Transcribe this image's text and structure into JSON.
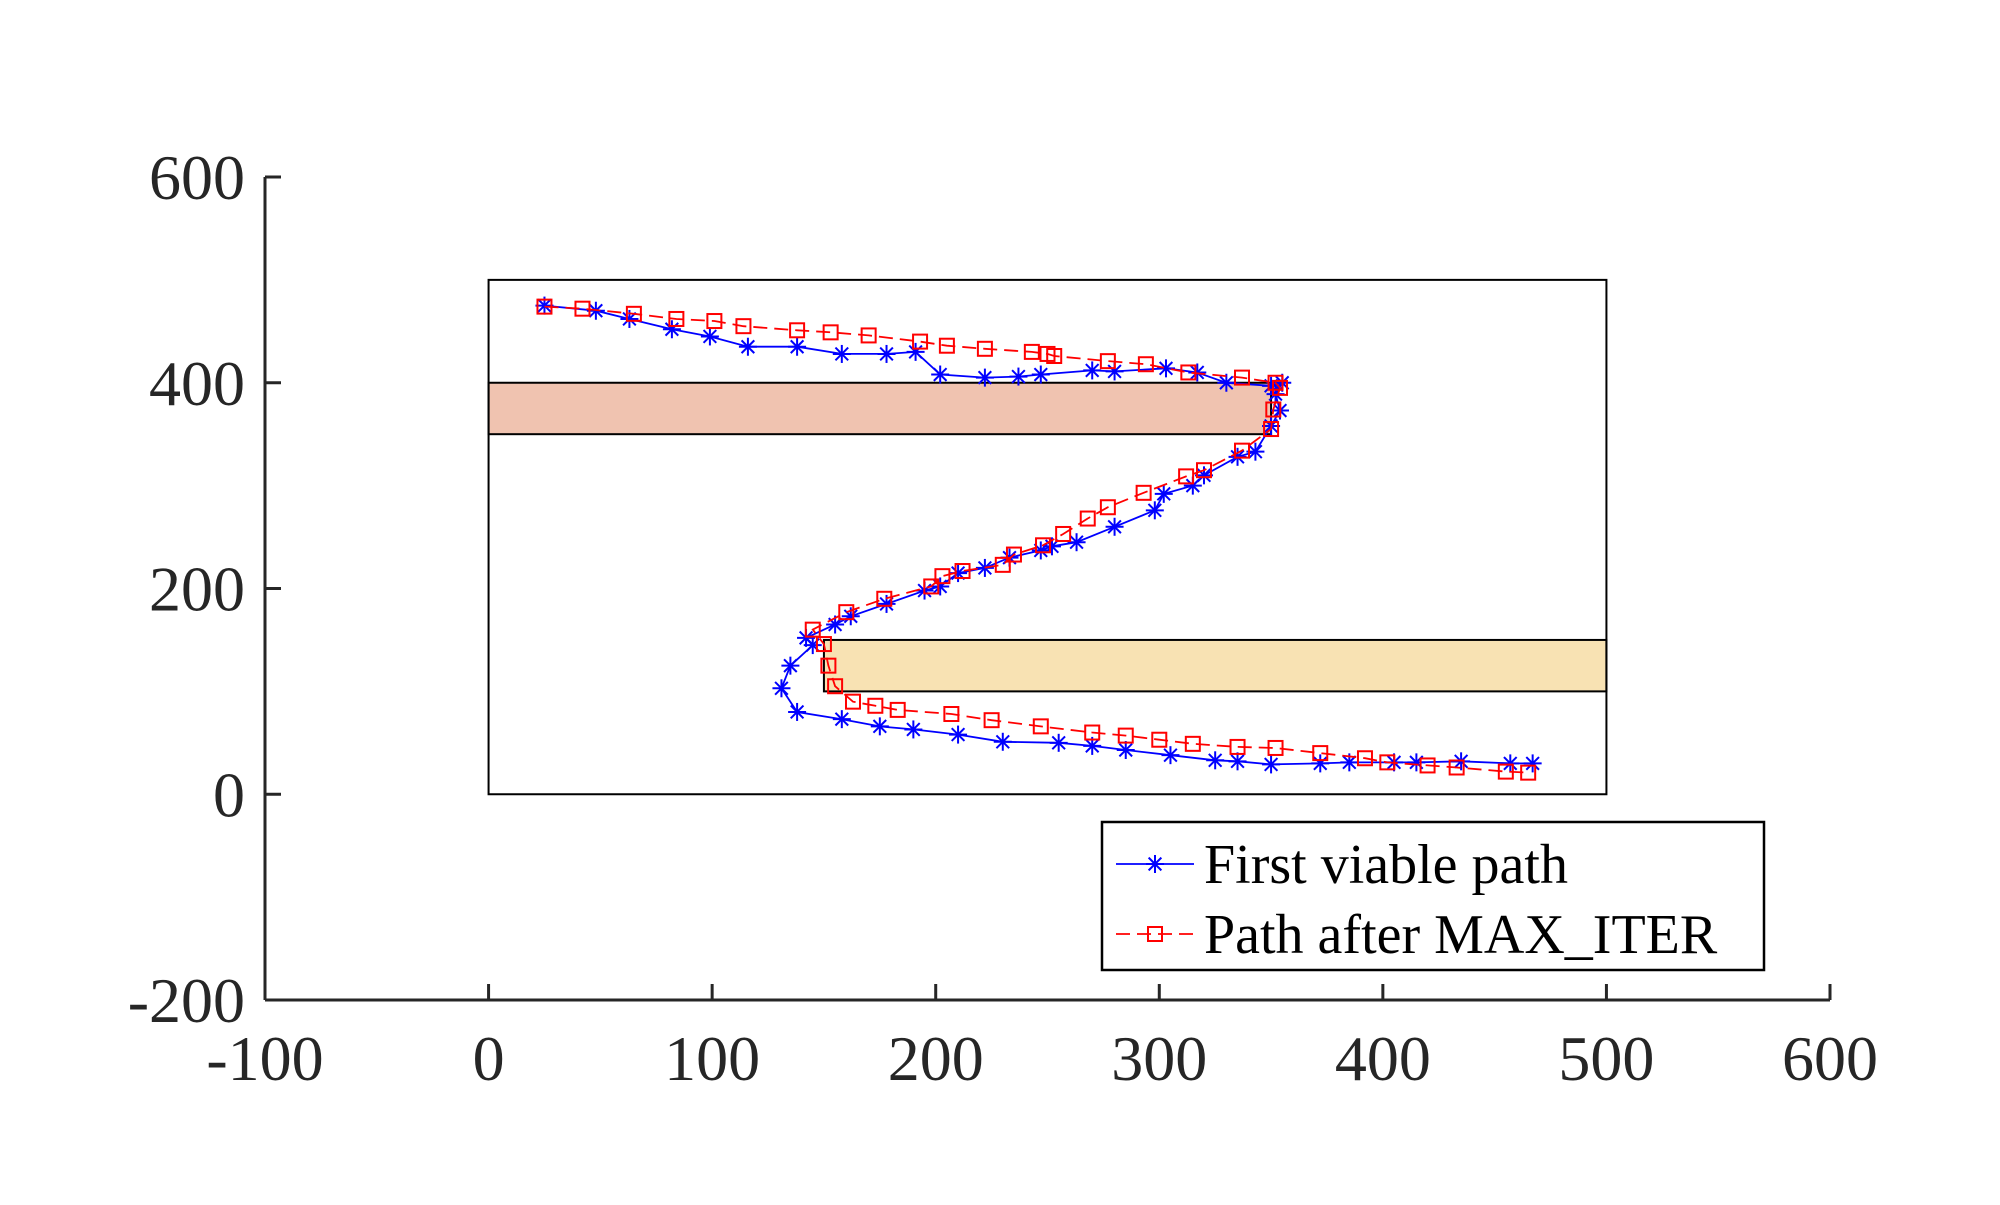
{
  "chart_data": {
    "type": "line",
    "title": "",
    "xlabel": "",
    "ylabel": "",
    "xlim": [
      -100,
      600
    ],
    "ylim": [
      -200,
      600
    ],
    "x_ticks": [
      "-100",
      "0",
      "100",
      "200",
      "300",
      "400",
      "500",
      "600"
    ],
    "y_ticks": [
      "-200",
      "0",
      "200",
      "400",
      "600"
    ],
    "grid": false,
    "legend_position": "bottom-right",
    "boundary": {
      "x": [
        0,
        500
      ],
      "y": [
        0,
        500
      ]
    },
    "obstacles": [
      {
        "x": [
          0,
          350
        ],
        "y": [
          350,
          400
        ],
        "color": "#f0c3b0"
      },
      {
        "x": [
          150,
          500
        ],
        "y": [
          100,
          150
        ],
        "color": "#f8e2b3"
      }
    ],
    "series": [
      {
        "name": "First viable path",
        "color": "#0000ff",
        "marker": "asterisk",
        "line": "solid",
        "x": [
          25,
          48,
          63,
          82,
          99,
          116,
          138,
          158,
          178,
          191,
          202,
          222,
          237,
          247,
          270,
          280,
          303,
          317,
          330,
          350,
          355,
          352,
          354,
          350,
          343,
          335,
          320,
          315,
          302,
          298,
          280,
          263,
          252,
          247,
          233,
          222,
          210,
          202,
          195,
          178,
          162,
          155,
          142,
          145,
          135,
          131,
          138,
          158,
          175,
          190,
          210,
          230,
          255,
          270,
          285,
          305,
          325,
          335,
          350,
          372,
          385,
          405,
          415,
          435,
          457,
          467
        ],
        "y": [
          475,
          470,
          462,
          452,
          445,
          435,
          435,
          428,
          428,
          430,
          408,
          405,
          406,
          408,
          412,
          411,
          414,
          410,
          400,
          397,
          400,
          389,
          373,
          358,
          333,
          328,
          310,
          300,
          292,
          276,
          260,
          245,
          241,
          237,
          230,
          220,
          215,
          202,
          198,
          185,
          173,
          165,
          152,
          145,
          125,
          103,
          80,
          73,
          66,
          63,
          58,
          51,
          50,
          47,
          43,
          38,
          33,
          32,
          29,
          30,
          31,
          31,
          31,
          32,
          30,
          30
        ]
      },
      {
        "name": "Path after MAX_ITER",
        "color": "#ff0000",
        "marker": "square",
        "line": "dashed",
        "x": [
          25,
          42,
          65,
          84,
          101,
          114,
          138,
          153,
          170,
          193,
          205,
          222,
          243,
          250,
          253,
          277,
          294,
          313,
          337,
          352,
          354,
          351,
          350,
          337,
          320,
          312,
          293,
          277,
          268,
          257,
          248,
          235,
          230,
          212,
          203,
          198,
          177,
          160,
          145,
          150,
          152,
          155,
          163,
          173,
          183,
          207,
          225,
          247,
          270,
          285,
          300,
          315,
          335,
          352,
          372,
          392,
          402,
          420,
          433,
          455,
          465
        ],
        "y": [
          474,
          472,
          467,
          462,
          460,
          455,
          451,
          449,
          446,
          440,
          436,
          433,
          430,
          428,
          426,
          421,
          418,
          410,
          405,
          400,
          395,
          374,
          355,
          334,
          315,
          309,
          293,
          279,
          268,
          253,
          242,
          233,
          223,
          217,
          212,
          202,
          190,
          177,
          160,
          146,
          125,
          105,
          90,
          86,
          82,
          78,
          72,
          66,
          60,
          57,
          53,
          49,
          46,
          45,
          40,
          35,
          31,
          28,
          26,
          22,
          21
        ]
      }
    ]
  }
}
